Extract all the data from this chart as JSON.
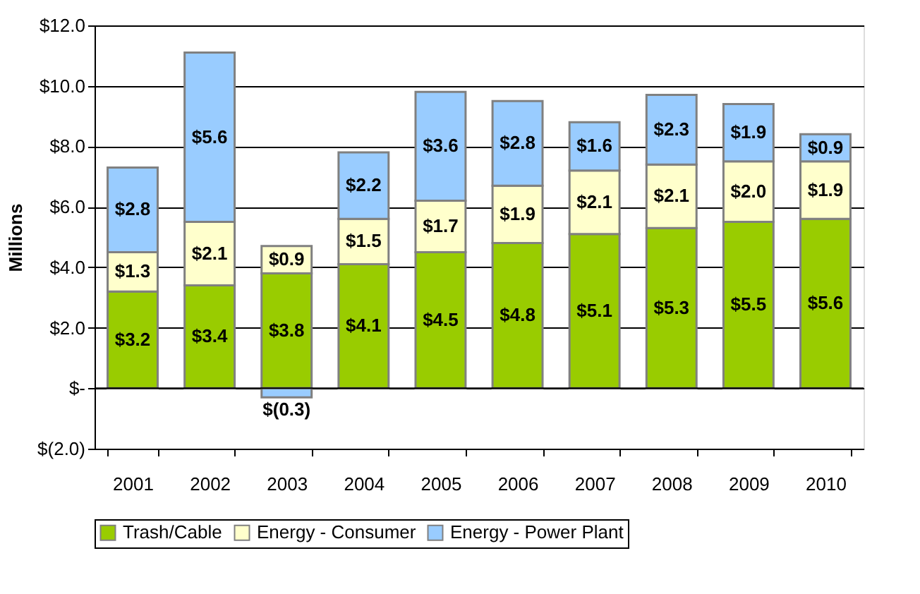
{
  "chart_data": {
    "type": "bar",
    "stacked": true,
    "ylabel": "Millions",
    "categories": [
      "2001",
      "2002",
      "2003",
      "2004",
      "2005",
      "2006",
      "2007",
      "2008",
      "2009",
      "2010"
    ],
    "series": [
      {
        "name": "Trash/Cable",
        "color": "#99cc00",
        "values": [
          3.2,
          3.4,
          3.8,
          4.1,
          4.5,
          4.8,
          5.1,
          5.3,
          5.5,
          5.6
        ],
        "value_labels": [
          "$3.2",
          "$3.4",
          "$3.8",
          "$4.1",
          "$4.5",
          "$4.8",
          "$5.1",
          "$5.3",
          "$5.5",
          "$5.6"
        ]
      },
      {
        "name": "Energy - Consumer",
        "color": "#ffffcc",
        "values": [
          1.3,
          2.1,
          0.9,
          1.5,
          1.7,
          1.9,
          2.1,
          2.1,
          2.0,
          1.9
        ],
        "value_labels": [
          "$1.3",
          "$2.1",
          "$0.9",
          "$1.5",
          "$1.7",
          "$1.9",
          "$2.1",
          "$2.1",
          "$2.0",
          "$1.9"
        ]
      },
      {
        "name": "Energy - Power Plant",
        "color": "#99ccff",
        "values": [
          2.8,
          5.6,
          -0.3,
          2.2,
          3.6,
          2.8,
          1.6,
          2.3,
          1.9,
          0.9
        ],
        "value_labels": [
          "$2.8",
          "$5.6",
          "$(0.3)",
          "$2.2",
          "$3.6",
          "$2.8",
          "$1.6",
          "$2.3",
          "$1.9",
          "$0.9"
        ]
      }
    ],
    "ylim": [
      -2,
      12
    ],
    "yticks": [
      {
        "value": -2,
        "label": "$(2.0)"
      },
      {
        "value": 0,
        "label": "$-"
      },
      {
        "value": 2,
        "label": "$2.0"
      },
      {
        "value": 4,
        "label": "$4.0"
      },
      {
        "value": 6,
        "label": "$6.0"
      },
      {
        "value": 8,
        "label": "$8.0"
      },
      {
        "value": 10,
        "label": "$10.0"
      },
      {
        "value": 12,
        "label": "$12.0"
      }
    ],
    "grid": "y",
    "legend": "bottom"
  }
}
